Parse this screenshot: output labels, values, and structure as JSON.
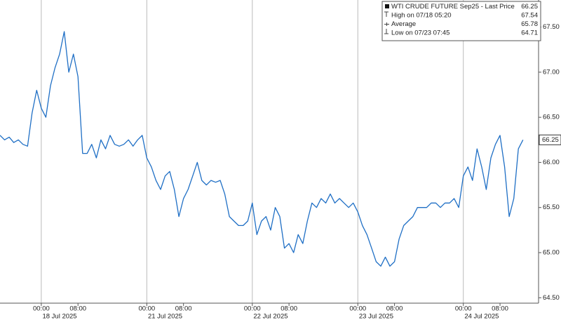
{
  "chart_data": {
    "type": "line",
    "legend": {
      "title": "WTI CRUDE FUTURE Sep25 - Last Price",
      "last": "66.25",
      "rows": [
        {
          "label": "High on 07/18 05:20",
          "value": "67.54"
        },
        {
          "label": "Average",
          "value": "65.78"
        },
        {
          "label": "Low on 07/23 07:45",
          "value": "64.71"
        }
      ]
    },
    "x": [
      -9,
      -8,
      -7,
      -6,
      -5,
      -4,
      -3,
      -2,
      -1,
      0,
      1,
      2,
      3,
      4,
      5,
      6,
      7,
      8,
      9,
      10,
      11,
      12,
      13,
      14,
      15,
      16,
      17,
      18,
      19,
      20,
      21,
      22,
      23,
      24,
      25,
      26,
      27,
      28,
      29,
      30,
      31,
      32,
      33,
      34,
      35,
      36,
      37,
      38,
      39,
      40,
      41,
      42,
      43,
      44,
      45,
      46,
      47,
      48,
      49,
      50,
      51,
      52,
      53,
      54,
      55,
      56,
      57,
      58,
      59,
      60,
      61,
      62,
      63,
      64,
      65,
      66,
      67,
      68,
      69,
      70,
      71,
      72,
      73,
      74,
      75,
      76,
      77,
      78,
      79,
      80,
      81,
      82,
      83,
      84,
      85,
      86,
      87,
      88,
      89,
      90,
      91,
      92,
      93,
      94,
      95,
      96,
      97,
      98,
      99,
      100,
      101,
      102,
      103,
      104,
      105
    ],
    "series": [
      {
        "name": "WTI CRUDE FUTURE Sep25",
        "color": "#1f6fc5",
        "values": [
          66.3,
          66.25,
          66.28,
          66.22,
          66.25,
          66.2,
          66.18,
          66.55,
          66.8,
          66.6,
          66.5,
          66.85,
          67.05,
          67.2,
          67.45,
          67.0,
          67.2,
          66.95,
          66.1,
          66.1,
          66.2,
          66.05,
          66.25,
          66.15,
          66.3,
          66.2,
          66.18,
          66.2,
          66.25,
          66.18,
          66.25,
          66.3,
          66.05,
          65.95,
          65.8,
          65.7,
          65.85,
          65.9,
          65.7,
          65.4,
          65.6,
          65.7,
          65.85,
          66.0,
          65.8,
          65.75,
          65.8,
          65.78,
          65.8,
          65.65,
          65.4,
          65.35,
          65.3,
          65.3,
          65.35,
          65.55,
          65.2,
          65.35,
          65.4,
          65.25,
          65.5,
          65.4,
          65.05,
          65.1,
          65.0,
          65.2,
          65.1,
          65.35,
          65.55,
          65.5,
          65.6,
          65.55,
          65.65,
          65.55,
          65.6,
          65.55,
          65.5,
          65.55,
          65.45,
          65.3,
          65.2,
          65.05,
          64.9,
          64.85,
          64.95,
          64.85,
          64.9,
          65.15,
          65.3,
          65.35,
          65.4,
          65.5,
          65.5,
          65.5,
          65.55,
          65.55,
          65.5,
          65.55,
          65.55,
          65.6,
          65.5,
          65.85,
          65.95,
          65.8,
          66.15,
          65.95,
          65.7,
          66.05,
          66.2,
          66.3,
          65.95,
          65.4,
          65.6,
          66.15,
          66.25
        ]
      }
    ],
    "xlim": [
      -9,
      108.4
    ],
    "xticks": [
      {
        "value": 0,
        "label": "00:00"
      },
      {
        "value": 8,
        "label": "08:00"
      },
      {
        "value": 23,
        "label": "00:00"
      },
      {
        "value": 31,
        "label": "08:00"
      },
      {
        "value": 46,
        "label": "00:00"
      },
      {
        "value": 54,
        "label": "08:00"
      },
      {
        "value": 69,
        "label": "00:00"
      },
      {
        "value": 77,
        "label": "08:00"
      },
      {
        "value": 92,
        "label": "00:00"
      },
      {
        "value": 100,
        "label": "08:00"
      }
    ],
    "x_dates": [
      "18 Jul 2025",
      "21 Jul 2025",
      "22 Jul 2025",
      "23 Jul 2025",
      "24 Jul 2025"
    ],
    "ylim": [
      64.44,
      67.8
    ],
    "yticks": [
      {
        "value": 64.5,
        "label": "64.50"
      },
      {
        "value": 65,
        "label": "65.00"
      },
      {
        "value": 65.5,
        "label": "65.50"
      },
      {
        "value": 66,
        "label": "66.00"
      },
      {
        "value": 66.5,
        "label": "66.50"
      },
      {
        "value": 67,
        "label": "67.00"
      },
      {
        "value": 67.5,
        "label": "67.50"
      }
    ]
  }
}
